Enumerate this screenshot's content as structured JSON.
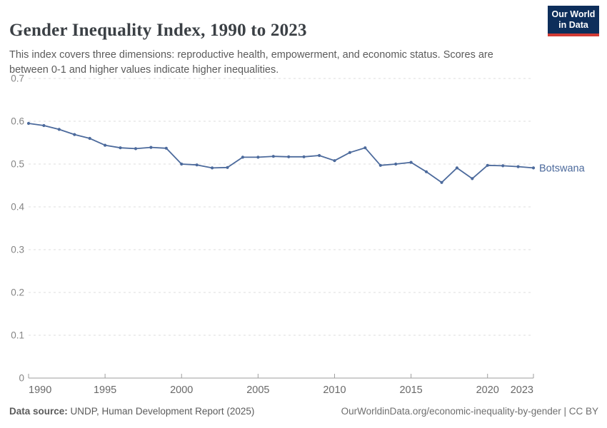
{
  "header": {
    "title": "Gender Inequality Index, 1990 to 2023",
    "subtitle": "This index covers three dimensions: reproductive health, empowerment, and economic status. Scores are between 0-1 and higher values indicate higher inequalities.",
    "logo": {
      "line1": "Our World",
      "line2": "in Data",
      "bg_color": "#0d2e5b",
      "accent_color": "#d13a34"
    }
  },
  "footer": {
    "datasource_label": "Data source:",
    "datasource_value": " UNDP, Human Development Report (2025)",
    "attribution": "OurWorldinData.org/economic-inequality-by-gender | CC BY"
  },
  "chart_data": {
    "type": "line",
    "title": "Gender Inequality Index, 1990 to 2023",
    "xlabel": "",
    "ylabel": "",
    "xlim": [
      1990,
      2023
    ],
    "ylim": [
      0,
      0.7
    ],
    "grid": "horizontal-dashed",
    "legend_position": "end-of-line-label",
    "x_ticks": [
      1990,
      1995,
      2000,
      2005,
      2010,
      2015,
      2020,
      2023
    ],
    "y_ticks": [
      0,
      0.1,
      0.2,
      0.3,
      0.4,
      0.5,
      0.6,
      0.7
    ],
    "series": [
      {
        "name": "Botswana",
        "color": "#4c6a9c",
        "x": [
          1990,
          1991,
          1992,
          1993,
          1994,
          1995,
          1996,
          1997,
          1998,
          1999,
          2000,
          2001,
          2002,
          2003,
          2004,
          2005,
          2006,
          2007,
          2008,
          2009,
          2010,
          2011,
          2012,
          2013,
          2014,
          2015,
          2016,
          2017,
          2018,
          2019,
          2020,
          2021,
          2022,
          2023
        ],
        "values": [
          0.595,
          0.59,
          0.581,
          0.569,
          0.56,
          0.544,
          0.538,
          0.536,
          0.539,
          0.537,
          0.5,
          0.498,
          0.491,
          0.492,
          0.516,
          0.516,
          0.518,
          0.517,
          0.517,
          0.52,
          0.508,
          0.527,
          0.538,
          0.497,
          0.5,
          0.504,
          0.482,
          0.457,
          0.491,
          0.466,
          0.497,
          0.496,
          0.494,
          0.491
        ]
      }
    ],
    "colors": {
      "gridline": "#dcdcdc",
      "axis_line": "#9e9e9e",
      "y_tick_label": "#858585",
      "x_tick_label": "#696969"
    }
  }
}
